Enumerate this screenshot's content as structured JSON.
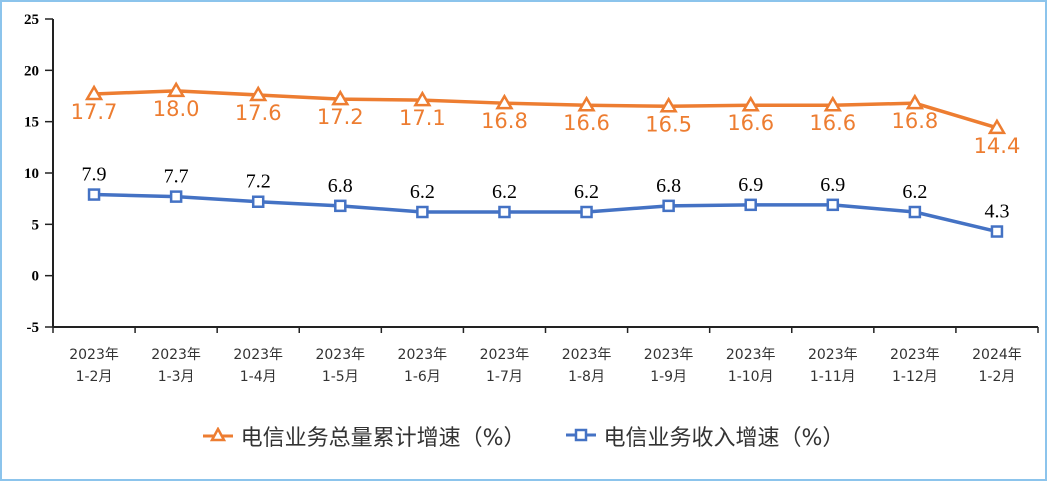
{
  "chart_data": {
    "type": "line",
    "categories": [
      "2023年\n1-2月",
      "2023年\n1-3月",
      "2023年\n1-4月",
      "2023年\n1-5月",
      "2023年\n1-6月",
      "2023年\n1-7月",
      "2023年\n1-8月",
      "2023年\n1-9月",
      "2023年\n1-10月",
      "2023年\n1-11月",
      "2023年\n1-12月",
      "2024年\n1-2月"
    ],
    "series": [
      {
        "name": "电信业务总量累计增速（%）",
        "color": "#ed7d31",
        "marker": "triangle",
        "values": [
          17.7,
          18.0,
          17.6,
          17.2,
          17.1,
          16.8,
          16.6,
          16.5,
          16.6,
          16.6,
          16.8,
          14.4
        ]
      },
      {
        "name": "电信业务收入增速（%）",
        "color": "#4472c4",
        "marker": "square",
        "values": [
          7.9,
          7.7,
          7.2,
          6.8,
          6.2,
          6.2,
          6.2,
          6.8,
          6.9,
          6.9,
          6.2,
          4.3
        ]
      }
    ],
    "ylim": [
      -5,
      25
    ],
    "yticks": [
      -5,
      0,
      5,
      10,
      15,
      20,
      25
    ],
    "grid": false,
    "legend": "bottom"
  }
}
